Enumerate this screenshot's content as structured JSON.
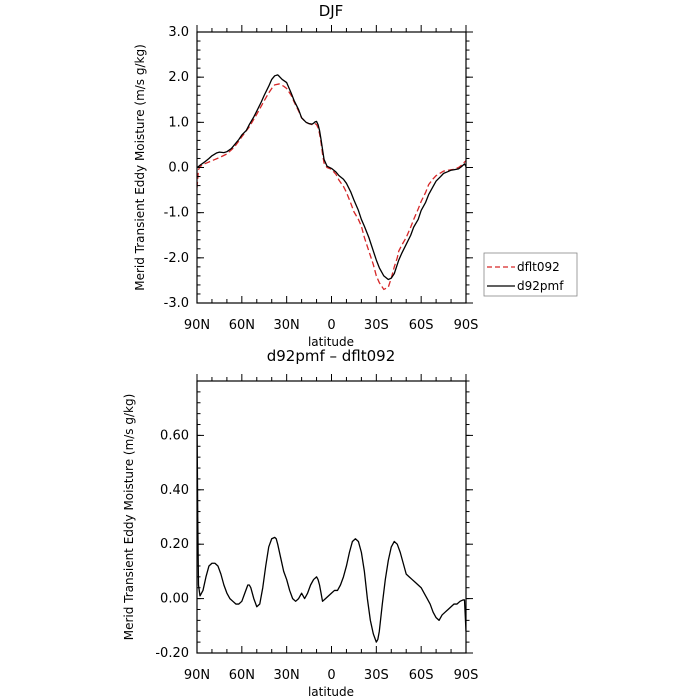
{
  "chart_data": [
    {
      "type": "line",
      "title": "DJF",
      "xlabel": "latitude",
      "ylabel": "Merid Transient Eddy Moisture  (m/s g/kg)",
      "xlim": [
        90,
        -90
      ],
      "ylim": [
        -3.0,
        3.0
      ],
      "xticks": [
        90,
        60,
        30,
        0,
        -30,
        -60,
        -90
      ],
      "xticklabels": [
        "90N",
        "60N",
        "30N",
        "0",
        "30S",
        "60S",
        "90S"
      ],
      "yticks": [
        -3.0,
        -2.0,
        -1.0,
        0.0,
        1.0,
        2.0,
        3.0
      ],
      "yticklabels": [
        "-3.0",
        "-2.0",
        "-1.0",
        "0.0",
        "1.0",
        "2.0",
        "3.0"
      ],
      "grid": false,
      "legend_placement": "right",
      "series": [
        {
          "name": "dflt092",
          "color": "#d62728",
          "dash": "dashed",
          "x": [
            90,
            89,
            88,
            85,
            80,
            75,
            70,
            65,
            60,
            55,
            50,
            45,
            42,
            40,
            38,
            35,
            32,
            30,
            27,
            25,
            22,
            20,
            17,
            15,
            13,
            12,
            11,
            10,
            9,
            8,
            7,
            6,
            5,
            3,
            0,
            -3,
            -5,
            -8,
            -10,
            -13,
            -15,
            -18,
            -20,
            -22,
            -25,
            -28,
            -30,
            -32,
            -35,
            -38,
            -40,
            -42,
            -44,
            -45,
            -47,
            -50,
            -53,
            -55,
            -58,
            -60,
            -63,
            -65,
            -68,
            -70,
            -73,
            -75,
            -78,
            -80,
            -82,
            -85,
            -87,
            -89,
            -90
          ],
          "y": [
            -0.45,
            -0.05,
            0.02,
            0.08,
            0.15,
            0.22,
            0.3,
            0.45,
            0.68,
            0.9,
            1.18,
            1.48,
            1.65,
            1.75,
            1.83,
            1.85,
            1.8,
            1.75,
            1.6,
            1.45,
            1.25,
            1.1,
            1.0,
            0.97,
            0.95,
            0.96,
            0.97,
            0.95,
            0.88,
            0.75,
            0.55,
            0.3,
            0.1,
            0.0,
            -0.04,
            -0.15,
            -0.28,
            -0.42,
            -0.55,
            -0.8,
            -0.98,
            -1.15,
            -1.3,
            -1.55,
            -1.85,
            -2.15,
            -2.4,
            -2.55,
            -2.7,
            -2.65,
            -2.45,
            -2.2,
            -2.0,
            -1.85,
            -1.72,
            -1.55,
            -1.32,
            -1.15,
            -0.92,
            -0.75,
            -0.55,
            -0.38,
            -0.25,
            -0.18,
            -0.12,
            -0.08,
            -0.06,
            -0.05,
            -0.04,
            0.0,
            0.05,
            0.12,
            0.15
          ]
        },
        {
          "name": "d92pmf",
          "color": "#000000",
          "dash": "solid",
          "x": [
            90,
            89,
            88,
            85,
            82,
            80,
            77,
            75,
            72,
            70,
            67,
            65,
            62,
            60,
            57,
            55,
            52,
            50,
            47,
            45,
            42,
            40,
            38,
            36,
            35,
            33,
            30,
            27,
            25,
            22,
            20,
            17,
            15,
            13,
            12,
            11,
            10,
            9,
            8,
            7,
            6,
            5,
            3,
            0,
            -3,
            -5,
            -8,
            -10,
            -13,
            -15,
            -18,
            -20,
            -22,
            -25,
            -28,
            -30,
            -32,
            -35,
            -38,
            -40,
            -42,
            -43,
            -45,
            -47,
            -50,
            -53,
            -55,
            -58,
            -60,
            -63,
            -65,
            -68,
            -70,
            -73,
            -75,
            -78,
            -80,
            -82,
            -85,
            -87,
            -89,
            -90
          ],
          "y": [
            0.0,
            0.02,
            0.05,
            0.12,
            0.2,
            0.26,
            0.32,
            0.34,
            0.33,
            0.35,
            0.42,
            0.5,
            0.62,
            0.72,
            0.82,
            0.95,
            1.12,
            1.25,
            1.45,
            1.6,
            1.8,
            1.95,
            2.03,
            2.05,
            2.02,
            1.95,
            1.88,
            1.65,
            1.48,
            1.28,
            1.1,
            1.0,
            0.97,
            0.96,
            0.98,
            1.01,
            1.02,
            0.95,
            0.82,
            0.62,
            0.4,
            0.18,
            0.03,
            -0.02,
            -0.1,
            -0.18,
            -0.26,
            -0.35,
            -0.55,
            -0.72,
            -0.95,
            -1.15,
            -1.3,
            -1.55,
            -1.85,
            -2.05,
            -2.22,
            -2.4,
            -2.48,
            -2.45,
            -2.35,
            -2.25,
            -2.05,
            -1.9,
            -1.7,
            -1.5,
            -1.32,
            -1.15,
            -0.95,
            -0.77,
            -0.6,
            -0.42,
            -0.3,
            -0.2,
            -0.13,
            -0.09,
            -0.06,
            -0.05,
            -0.03,
            0.02,
            0.08,
            0.02
          ]
        }
      ]
    },
    {
      "type": "line",
      "title": "d92pmf – dflt092",
      "xlabel": "latitude",
      "ylabel": "Merid Transient Eddy Moisture  (m/s g/kg)",
      "xlim": [
        90,
        -90
      ],
      "ylim": [
        -0.2,
        0.8
      ],
      "xticks": [
        90,
        60,
        30,
        0,
        -30,
        -60,
        -90
      ],
      "xticklabels": [
        "90N",
        "60N",
        "30N",
        "0",
        "30S",
        "60S",
        "90S"
      ],
      "yticks": [
        -0.2,
        0.0,
        0.2,
        0.4,
        0.6
      ],
      "yticklabels": [
        "-0.20",
        "0.00",
        "0.20",
        "0.40",
        "0.60"
      ],
      "grid": false,
      "series": [
        {
          "color": "#000000",
          "dash": "solid",
          "x": [
            90,
            89.5,
            89,
            88,
            86,
            84,
            82,
            80,
            78,
            76,
            74,
            72,
            70,
            68,
            66,
            64,
            62,
            60,
            58,
            56,
            55,
            54,
            52,
            50,
            48,
            46,
            44,
            42,
            40,
            38,
            37,
            36,
            34,
            32,
            30,
            28,
            26,
            24,
            22,
            20,
            18,
            17,
            16,
            14,
            12,
            10,
            9,
            8,
            7,
            6,
            4,
            2,
            0,
            -2,
            -4,
            -6,
            -8,
            -10,
            -12,
            -14,
            -16,
            -18,
            -20,
            -22,
            -24,
            -26,
            -28,
            -30,
            -31,
            -32,
            -34,
            -36,
            -38,
            -40,
            -42,
            -44,
            -46,
            -48,
            -50,
            -52,
            -54,
            -56,
            -58,
            -60,
            -62,
            -64,
            -66,
            -68,
            -70,
            -72,
            -74,
            -76,
            -78,
            -80,
            -82,
            -84,
            -86,
            -88,
            -89,
            -90
          ],
          "y": [
            0.66,
            0.3,
            0.05,
            0.01,
            0.03,
            0.08,
            0.12,
            0.13,
            0.13,
            0.12,
            0.09,
            0.05,
            0.02,
            0.0,
            -0.01,
            -0.02,
            -0.02,
            -0.01,
            0.02,
            0.05,
            0.05,
            0.04,
            0.0,
            -0.03,
            -0.02,
            0.04,
            0.12,
            0.19,
            0.22,
            0.225,
            0.22,
            0.2,
            0.15,
            0.1,
            0.07,
            0.03,
            0.0,
            -0.01,
            0.0,
            0.02,
            0.0,
            0.01,
            0.02,
            0.05,
            0.07,
            0.08,
            0.07,
            0.05,
            0.02,
            -0.01,
            0.0,
            0.01,
            0.02,
            0.03,
            0.03,
            0.05,
            0.08,
            0.12,
            0.17,
            0.21,
            0.22,
            0.21,
            0.17,
            0.1,
            0.0,
            -0.08,
            -0.13,
            -0.16,
            -0.15,
            -0.12,
            -0.02,
            0.07,
            0.14,
            0.19,
            0.21,
            0.2,
            0.17,
            0.13,
            0.09,
            0.08,
            0.07,
            0.06,
            0.05,
            0.04,
            0.02,
            0.0,
            -0.02,
            -0.05,
            -0.07,
            -0.08,
            -0.06,
            -0.05,
            -0.04,
            -0.03,
            -0.02,
            -0.02,
            -0.01,
            -0.005,
            -0.005,
            -0.12
          ]
        }
      ]
    }
  ]
}
